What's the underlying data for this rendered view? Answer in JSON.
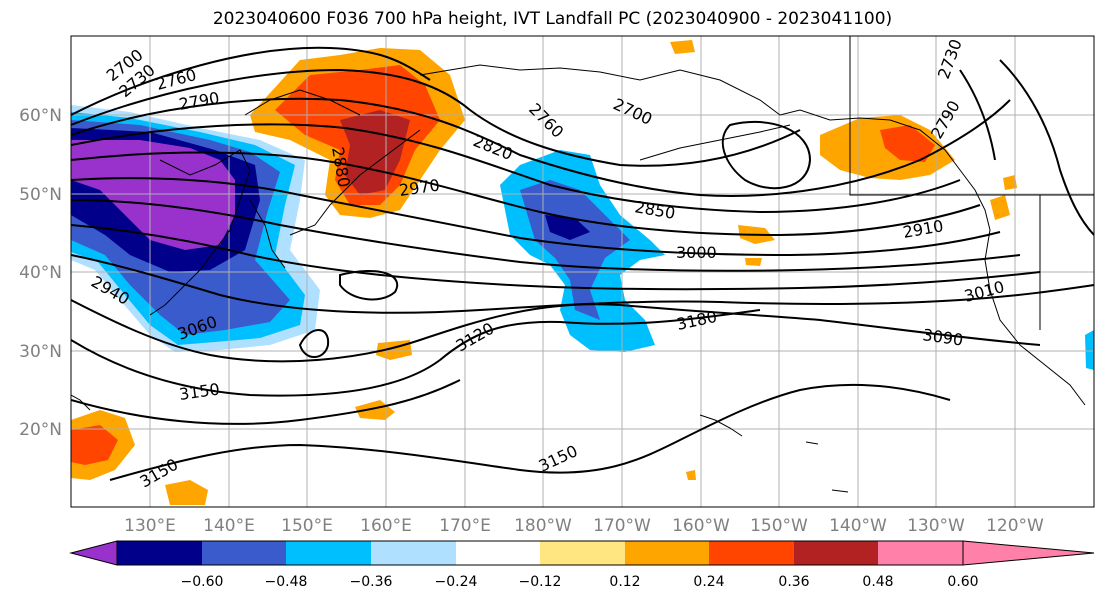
{
  "title": "2023040600 F036 700 hPa height, IVT Landfall PC (2023040900 - 2023041100)",
  "lat_labels": [
    "60°N",
    "50°N",
    "40°N",
    "30°N",
    "20°N"
  ],
  "lon_labels": [
    "130°E",
    "140°E",
    "150°E",
    "160°E",
    "170°E",
    "180°W",
    "170°W",
    "160°W",
    "150°W",
    "140°W",
    "130°W",
    "120°W"
  ],
  "contour_labels": [
    "2700",
    "2730",
    "2760",
    "2790",
    "2880",
    "2970",
    "2760",
    "2700",
    "2820",
    "2850",
    "3000",
    "2910",
    "3010",
    "2730",
    "2790",
    "3180",
    "3090",
    "3120",
    "3060",
    "2940",
    "3150",
    "3150",
    "3150"
  ],
  "colorbar": {
    "ticks": [
      "−0.60",
      "−0.48",
      "−0.36",
      "−0.24",
      "−0.12",
      "0.12",
      "0.24",
      "0.36",
      "0.48",
      "0.60"
    ],
    "colors": [
      "#9932cc",
      "#00008b",
      "#3a5bcc",
      "#00bfff",
      "#b0e0ff",
      "#ffffff",
      "#ffe680",
      "#ffa500",
      "#ff4500",
      "#b22222",
      "#ff80a8"
    ]
  }
}
